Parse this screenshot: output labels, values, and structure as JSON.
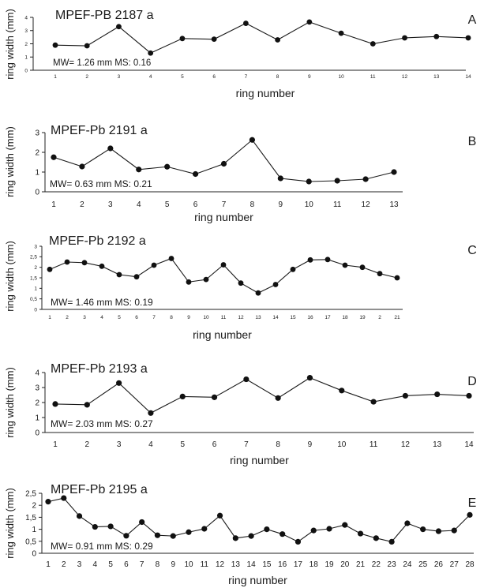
{
  "chart_data": [
    {
      "type": "line",
      "panel": "A",
      "title": "MPEF-PB 2187 a",
      "annotation": "MW= 1.26 mm MS: 0.16",
      "xlabel": "ring number",
      "ylabel": "ring width (mm)",
      "ylim": [
        0,
        4
      ],
      "yticks": [
        "0",
        "1",
        "2",
        "3",
        "4"
      ],
      "categories": [
        "1",
        "2",
        "3",
        "4",
        "5",
        "6",
        "7",
        "8",
        "9",
        "10",
        "11",
        "12",
        "13",
        "14"
      ],
      "values": [
        1.9,
        1.85,
        3.3,
        1.3,
        2.4,
        2.35,
        3.55,
        2.3,
        3.65,
        2.8,
        2.0,
        2.45,
        2.55,
        2.45
      ]
    },
    {
      "type": "line",
      "panel": "B",
      "title": "MPEF-Pb 2191 a",
      "annotation": "MW= 0.63 mm MS: 0.21",
      "xlabel": "ring number",
      "ylabel": "ring width (mm)",
      "ylim": [
        0,
        3
      ],
      "yticks": [
        "0",
        "1",
        "2",
        "3"
      ],
      "categories": [
        "1",
        "2",
        "3",
        "4",
        "5",
        "6",
        "7",
        "8",
        "9",
        "10",
        "11",
        "12",
        "13"
      ],
      "values": [
        1.75,
        1.28,
        2.2,
        1.13,
        1.27,
        0.9,
        1.42,
        2.63,
        0.68,
        0.52,
        0.56,
        0.64,
        1.0
      ]
    },
    {
      "type": "line",
      "panel": "C",
      "title": "MPEF-Pb 2192 a",
      "annotation": "MW= 1.46 mm MS: 0.19",
      "xlabel": "ring number",
      "ylabel": "ring width (mm)",
      "ylim": [
        0,
        3
      ],
      "yticks": [
        "0",
        "0,5",
        "1",
        "1,5",
        "2",
        "2,5",
        "3"
      ],
      "categories": [
        "1",
        "2",
        "3",
        "4",
        "5",
        "6",
        "7",
        "8",
        "9",
        "10",
        "11",
        "12",
        "13",
        "14",
        "15",
        "16",
        "17",
        "18",
        "19",
        "2",
        "21"
      ],
      "values": [
        1.9,
        2.25,
        2.22,
        2.05,
        1.65,
        1.55,
        2.1,
        2.42,
        1.3,
        1.42,
        2.12,
        1.25,
        0.78,
        1.18,
        1.9,
        2.35,
        2.37,
        2.1,
        2.0,
        1.7,
        1.5
      ]
    },
    {
      "type": "line",
      "panel": "D",
      "title": "MPEF-Pb 2193 a",
      "annotation": "MW= 2.03 mm MS: 0.27",
      "xlabel": "ring number",
      "ylabel": "ring width (mm)",
      "ylim": [
        0,
        4
      ],
      "yticks": [
        "0",
        "1",
        "2",
        "3",
        "4"
      ],
      "categories": [
        "1",
        "2",
        "3",
        "4",
        "5",
        "6",
        "7",
        "8",
        "9",
        "10",
        "11",
        "12",
        "13",
        "14"
      ],
      "values": [
        1.9,
        1.85,
        3.3,
        1.3,
        2.4,
        2.35,
        3.55,
        2.3,
        3.65,
        2.8,
        2.05,
        2.45,
        2.55,
        2.45
      ]
    },
    {
      "type": "line",
      "panel": "E",
      "title": "MPEF-Pb 2195 a",
      "annotation": "MW= 0.91 mm MS: 0.29",
      "xlabel": "ring number",
      "ylabel": "ring width (mm)",
      "ylim": [
        0,
        2.5
      ],
      "yticks": [
        "0",
        "0,5",
        "1",
        "1,5",
        "2",
        "2,5"
      ],
      "categories": [
        "1",
        "2",
        "3",
        "4",
        "5",
        "6",
        "7",
        "8",
        "9",
        "10",
        "11",
        "12",
        "13",
        "14",
        "15",
        "16",
        "17",
        "18",
        "19",
        "20",
        "21",
        "22",
        "23",
        "24",
        "25",
        "26",
        "27",
        "28"
      ],
      "values": [
        2.15,
        2.3,
        1.55,
        1.1,
        1.12,
        0.73,
        1.3,
        0.75,
        0.72,
        0.88,
        1.02,
        1.57,
        0.63,
        0.72,
        1.0,
        0.8,
        0.48,
        0.95,
        1.02,
        1.18,
        0.82,
        0.63,
        0.48,
        1.25,
        1.0,
        0.92,
        0.95,
        1.6
      ]
    }
  ]
}
